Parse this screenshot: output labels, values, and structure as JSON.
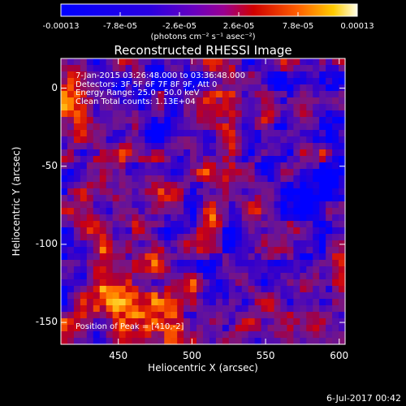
{
  "chart_data": {
    "type": "heatmap",
    "title": "Reconstructed RHESSI Image",
    "xlabel": "Heliocentric X (arcsec)",
    "ylabel": "Heliocentric Y (arcsec)",
    "xlim": [
      411,
      604
    ],
    "ylim": [
      -164,
      19
    ],
    "x_ticks": [
      450,
      500,
      550,
      600
    ],
    "y_ticks": [
      0,
      -50,
      -100,
      -150
    ],
    "colorbar": {
      "min": -0.00013,
      "max": 0.00013,
      "tick_labels": [
        "-0.00013",
        "-7.8e-05",
        "-2.6e-05",
        "2.6e-05",
        "7.8e-05",
        "0.00013"
      ],
      "units": "(photons cm⁻² s⁻¹ asec⁻²)"
    },
    "annotations": [
      "7-Jan-2015 03:26:48.000 to 03:36:48.000",
      "Detectors: 3F 5F 6F 7F 8F 9F, Att 0",
      "Energy Range: 25.0 - 50.0 keV",
      "Clean     Total counts: 1.13E+04"
    ],
    "peak_note": "Position of Peak = [410,-2]",
    "grid": false,
    "colors": {
      "background": "#000000",
      "axes": "#ffffff",
      "text": "#ffffff"
    }
  },
  "timestamp": "6-Jul-2017 00:42"
}
